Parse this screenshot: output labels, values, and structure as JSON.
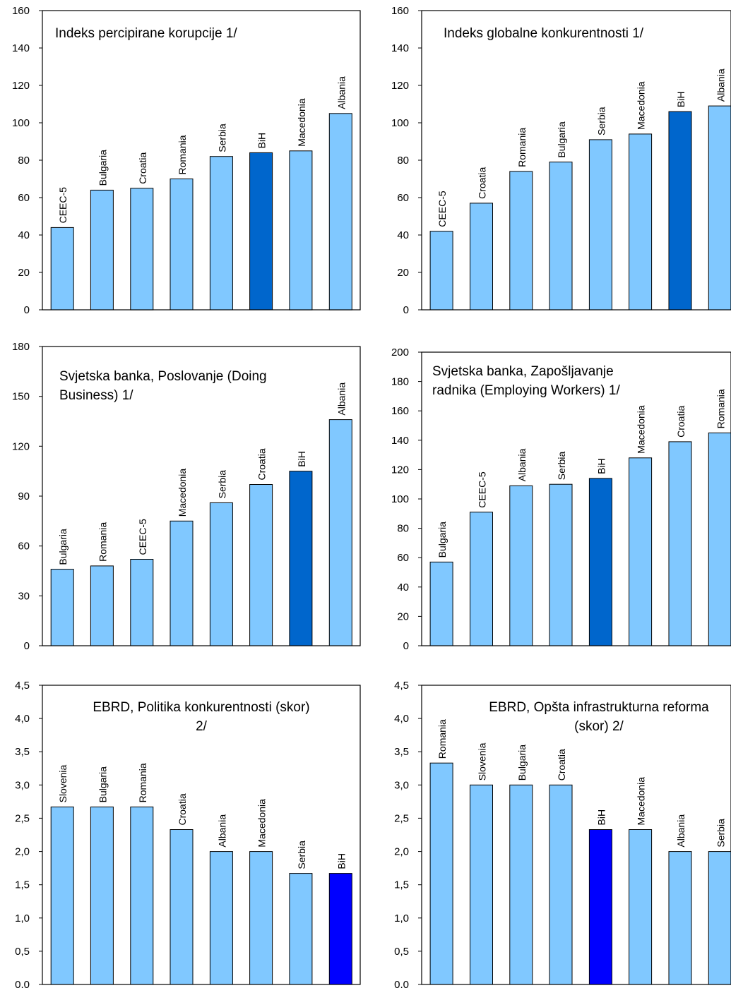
{
  "chart_data": [
    {
      "type": "bar",
      "title": "Indeks percipirane korupcije 1/",
      "categories": [
        "CEEC-5",
        "Bulgaria",
        "Croatia",
        "Romania",
        "Serbia",
        "BiH",
        "Macedonia",
        "Albania"
      ],
      "values": [
        44,
        64,
        65,
        70,
        82,
        84,
        85,
        105
      ],
      "highlight": "BiH",
      "ylim": [
        0,
        160
      ],
      "yticks": [
        "0",
        "20",
        "40",
        "60",
        "80",
        "100",
        "120",
        "140",
        "160"
      ],
      "xlabel": "",
      "ylabel": "",
      "grid": false,
      "colors": {
        "bar": "#80C8FF",
        "highlight": "#0066CC"
      }
    },
    {
      "type": "bar",
      "title": "Indeks globalne konkurentnosti 1/",
      "categories": [
        "CEEC-5",
        "Croatia",
        "Romania",
        "Bulgaria",
        "Serbia",
        "Macedonia",
        "BiH",
        "Albania"
      ],
      "values": [
        42,
        57,
        74,
        79,
        91,
        94,
        106,
        109
      ],
      "highlight": "BiH",
      "ylim": [
        0,
        160
      ],
      "yticks": [
        "0",
        "20",
        "40",
        "60",
        "80",
        "100",
        "120",
        "140",
        "160"
      ],
      "xlabel": "",
      "ylabel": "",
      "grid": false,
      "colors": {
        "bar": "#80C8FF",
        "highlight": "#0066CC"
      }
    },
    {
      "type": "bar",
      "title": "Svjetska banka, Poslovanje (Doing Business) 1/",
      "categories": [
        "Bulgaria",
        "Romania",
        "CEEC-5",
        "Macedonia",
        "Serbia",
        "Croatia",
        "BiH",
        "Albania"
      ],
      "values": [
        46,
        48,
        52,
        75,
        86,
        97,
        105,
        136
      ],
      "highlight": "BiH",
      "ylim": [
        0,
        180
      ],
      "yticks": [
        "0",
        "30",
        "60",
        "90",
        "120",
        "150",
        "180"
      ],
      "xlabel": "",
      "ylabel": "",
      "grid": false,
      "colors": {
        "bar": "#80C8FF",
        "highlight": "#0066CC"
      }
    },
    {
      "type": "bar",
      "title": "Svjetska banka, Zapošljavanje radnika (Employing Workers) 1/",
      "categories": [
        "Bulgaria",
        "CEEC-5",
        "Albania",
        "Serbia",
        "BiH",
        "Macedonia",
        "Croatia",
        "Romania"
      ],
      "values": [
        57,
        91,
        109,
        110,
        114,
        128,
        139,
        145
      ],
      "highlight": "BiH",
      "ylim": [
        0,
        200
      ],
      "yticks": [
        "0",
        "20",
        "40",
        "60",
        "80",
        "100",
        "120",
        "140",
        "160",
        "180",
        "200"
      ],
      "xlabel": "",
      "ylabel": "",
      "grid": false,
      "colors": {
        "bar": "#80C8FF",
        "highlight": "#0066CC"
      }
    },
    {
      "type": "bar",
      "title": "EBRD, Politika konkurentnosti (skor) 2/",
      "categories": [
        "Slovenia",
        "Bulgaria",
        "Romania",
        "Croatia",
        "Albania",
        "Macedonia",
        "Serbia",
        "BiH"
      ],
      "values": [
        2.67,
        2.67,
        2.67,
        2.33,
        2.0,
        2.0,
        1.67,
        1.67
      ],
      "highlight": "BiH",
      "ylim": [
        0,
        4.5
      ],
      "yticks": [
        "0,0",
        "0,5",
        "1,0",
        "1,5",
        "2,0",
        "2,5",
        "3,0",
        "3,5",
        "4,0",
        "4,5"
      ],
      "xlabel": "",
      "ylabel": "",
      "grid": false,
      "colors": {
        "bar": "#80C8FF",
        "highlight": "#0000FF"
      }
    },
    {
      "type": "bar",
      "title": "EBRD, Opšta infrastrukturna reforma (skor) 2/",
      "categories": [
        "Romania",
        "Slovenia",
        "Bulgaria",
        "Croatia",
        "BiH",
        "Macedonia",
        "Albania",
        "Serbia"
      ],
      "values": [
        3.33,
        3.0,
        3.0,
        3.0,
        2.33,
        2.33,
        2.0,
        2.0
      ],
      "highlight": "BiH",
      "ylim": [
        0,
        4.5
      ],
      "yticks": [
        "0,0",
        "0,5",
        "1,0",
        "1,5",
        "2,0",
        "2,5",
        "3,0",
        "3,5",
        "4,0",
        "4,5"
      ],
      "xlabel": "",
      "ylabel": "",
      "grid": false,
      "colors": {
        "bar": "#80C8FF",
        "highlight": "#0000FF"
      }
    }
  ]
}
